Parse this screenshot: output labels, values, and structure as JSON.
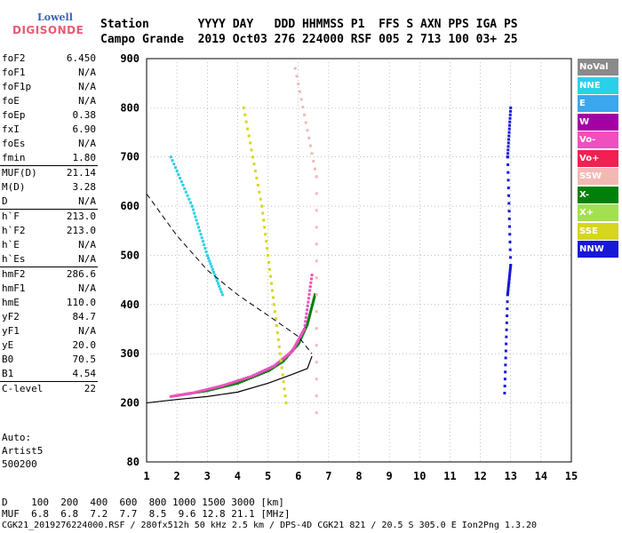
{
  "logo": {
    "line1": "Lowell",
    "line2": "DIGISONDE"
  },
  "header": {
    "row1": "Station       YYYY DAY   DDD HHMMSS P1  FFS S AXN PPS IGA PS",
    "row2": "Campo Grande  2019 Oct03 276 224000 RSF 005 2 713 100 03+ 25"
  },
  "params": [
    {
      "name": "foF2",
      "value": "6.450"
    },
    {
      "name": "foF1",
      "value": "N/A"
    },
    {
      "name": "foF1p",
      "value": "N/A"
    },
    {
      "name": "foE",
      "value": "N/A"
    },
    {
      "name": "foEp",
      "value": "0.38"
    },
    {
      "name": "fxI",
      "value": "6.90"
    },
    {
      "name": "foEs",
      "value": "N/A"
    },
    {
      "name": "fmin",
      "value": "1.80"
    },
    {
      "name": "MUF(D)",
      "value": "21.14",
      "div": true
    },
    {
      "name": "M(D)",
      "value": "3.28"
    },
    {
      "name": "D",
      "value": "N/A"
    },
    {
      "name": "h`F",
      "value": "213.0",
      "div": true
    },
    {
      "name": "h`F2",
      "value": "213.0"
    },
    {
      "name": "h`E",
      "value": "N/A"
    },
    {
      "name": "h`Es",
      "value": "N/A"
    },
    {
      "name": "hmF2",
      "value": "286.6",
      "div": true
    },
    {
      "name": "hmF1",
      "value": "N/A"
    },
    {
      "name": "hmE",
      "value": "110.0"
    },
    {
      "name": "yF2",
      "value": "84.7"
    },
    {
      "name": "yF1",
      "value": "N/A"
    },
    {
      "name": "yE",
      "value": "20.0"
    },
    {
      "name": "B0",
      "value": "70.5"
    },
    {
      "name": "B1",
      "value": "4.54"
    },
    {
      "name": "C-level",
      "value": "22",
      "div": true
    }
  ],
  "autoscaling": {
    "line1": "Auto:",
    "line2": "Artist5",
    "line3": "500200"
  },
  "legend": [
    {
      "label": "NoVal",
      "color": "#8a8a8a"
    },
    {
      "label": "NNE",
      "color": "#2ad0e8"
    },
    {
      "label": "E",
      "color": "#3aa7ef"
    },
    {
      "label": "W",
      "color": "#a400a4"
    },
    {
      "label": "Vo-",
      "color": "#f04fc0"
    },
    {
      "label": "Vo+",
      "color": "#f21f52"
    },
    {
      "label": "SSW",
      "color": "#f4b8b4"
    },
    {
      "label": "X-",
      "color": "#00800a"
    },
    {
      "label": "X+",
      "color": "#a3e050"
    },
    {
      "label": "SSE",
      "color": "#d6d61e"
    },
    {
      "label": "NNW",
      "color": "#1818d8"
    }
  ],
  "footer": {
    "d_row": "D    100  200  400  600  800 1000 1500 3000 [km]",
    "muf_row": "MUF  6.8  6.8  7.2  7.7  8.5  9.6 12.8 21.1 [MHz]",
    "info_row": "CGK21_2019276224000.RSF / 280fx512h 50 kHz 2.5 km / DPS-4D CGK21 821 / 20.5 S 305.0 E Ion2Png 1.3.20"
  },
  "chart_data": {
    "type": "scatter",
    "xlim": [
      1,
      15
    ],
    "ylim": [
      80,
      900
    ],
    "x_ticks": [
      1,
      2,
      3,
      4,
      5,
      6,
      7,
      8,
      9,
      10,
      11,
      12,
      13,
      14,
      15
    ],
    "y_ticks": [
      80,
      200,
      300,
      400,
      500,
      600,
      700,
      800,
      900
    ],
    "grid": true,
    "series": [
      {
        "name": "X-",
        "values": [
          [
            2.0,
            215
          ],
          [
            3.0,
            225
          ],
          [
            4.0,
            240
          ],
          [
            5.0,
            265
          ],
          [
            5.5,
            285
          ],
          [
            6.0,
            320
          ],
          [
            6.3,
            360
          ],
          [
            6.55,
            420
          ]
        ]
      },
      {
        "name": "Vo-",
        "values": [
          [
            1.8,
            213
          ],
          [
            2.5,
            220
          ],
          [
            3.5,
            235
          ],
          [
            4.5,
            255
          ],
          [
            5.2,
            275
          ],
          [
            5.8,
            305
          ],
          [
            6.2,
            350
          ],
          [
            6.45,
            460
          ]
        ]
      },
      {
        "name": "NNW",
        "values": [
          [
            12.8,
            220
          ],
          [
            12.9,
            420
          ],
          [
            13.0,
            480
          ],
          [
            12.9,
            700
          ],
          [
            13.0,
            800
          ]
        ]
      },
      {
        "name": "SSW",
        "values": [
          [
            6.6,
            180
          ],
          [
            6.6,
            660
          ],
          [
            5.9,
            880
          ]
        ]
      },
      {
        "name": "NNE",
        "values": [
          [
            1.8,
            700
          ],
          [
            2.5,
            600
          ],
          [
            3.0,
            500
          ],
          [
            3.5,
            420
          ]
        ]
      },
      {
        "name": "SSE",
        "values": [
          [
            4.2,
            800
          ],
          [
            4.8,
            600
          ],
          [
            5.2,
            400
          ],
          [
            5.6,
            200
          ]
        ]
      }
    ],
    "profile_curve": [
      [
        1,
        200
      ],
      [
        2,
        207
      ],
      [
        3,
        213
      ],
      [
        4,
        222
      ],
      [
        5,
        240
      ],
      [
        5.8,
        258
      ],
      [
        6.3,
        270
      ],
      [
        6.45,
        295
      ]
    ],
    "extrapolation_curve": [
      [
        1,
        625
      ],
      [
        2,
        540
      ],
      [
        3,
        470
      ],
      [
        4,
        420
      ],
      [
        5,
        378
      ],
      [
        6,
        335
      ],
      [
        6.45,
        300
      ]
    ]
  }
}
